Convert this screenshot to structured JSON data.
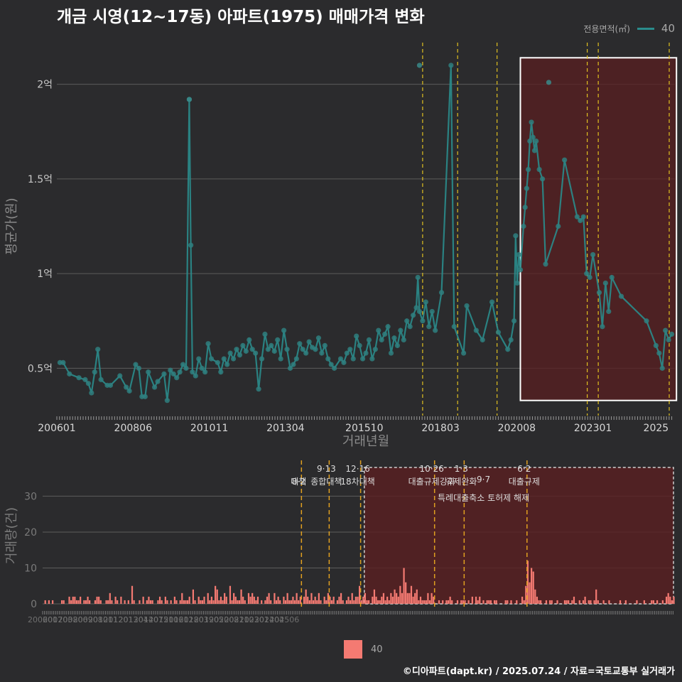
{
  "title": "개금 시영(12~17동) 아파트(1975) 매매가격 변화",
  "legend": {
    "title": "전용면적(㎡)",
    "item": "40"
  },
  "volume_legend": {
    "item": "40"
  },
  "footer": "©디아파트(dapt.kr) / 2025.07.24 / 자료=국토교통부 실거래가",
  "colors": {
    "background": "#2b2b2d",
    "line": "#2a8c8c",
    "bar": "#f47a72",
    "highlight": "#5a1f20",
    "policy_line": "#e0c020"
  },
  "chart_data": [
    {
      "type": "line",
      "xlabel": "거래년월",
      "ylabel": "평균가(원)",
      "x_ticks": [
        "200601",
        "200806",
        "201011",
        "201304",
        "201510",
        "201803",
        "202008",
        "202301",
        "2025"
      ],
      "y_ticks": [
        "0.5억",
        "1억",
        "1.5억",
        "2억"
      ],
      "y_tick_values": [
        0.5,
        1.0,
        1.5,
        2.0
      ],
      "ylim": [
        0.25,
        2.25
      ],
      "xlim": [
        2006.0,
        2025.6
      ],
      "series": [
        {
          "name": "40",
          "points": [
            [
              2006.1,
              0.53
            ],
            [
              2006.2,
              0.53
            ],
            [
              2006.4,
              0.47
            ],
            [
              2006.7,
              0.45
            ],
            [
              2006.9,
              0.44
            ],
            [
              2007.0,
              0.42
            ],
            [
              2007.1,
              0.37
            ],
            [
              2007.2,
              0.48
            ],
            [
              2007.3,
              0.6
            ],
            [
              2007.4,
              0.44
            ],
            [
              2007.6,
              0.41
            ],
            [
              2007.7,
              0.41
            ],
            [
              2008.0,
              0.46
            ],
            [
              2008.2,
              0.4
            ],
            [
              2008.3,
              0.38
            ],
            [
              2008.5,
              0.52
            ],
            [
              2008.6,
              0.5
            ],
            [
              2008.7,
              0.35
            ],
            [
              2008.8,
              0.35
            ],
            [
              2008.9,
              0.48
            ],
            [
              2009.1,
              0.4
            ],
            [
              2009.2,
              0.43
            ],
            [
              2009.4,
              0.47
            ],
            [
              2009.5,
              0.33
            ],
            [
              2009.6,
              0.49
            ],
            [
              2009.7,
              0.47
            ],
            [
              2009.8,
              0.45
            ],
            [
              2009.9,
              0.48
            ],
            [
              2010.0,
              0.52
            ],
            [
              2010.1,
              0.5
            ],
            [
              2010.2,
              1.92
            ],
            [
              2010.25,
              1.15
            ],
            [
              2010.3,
              0.48
            ],
            [
              2010.4,
              0.46
            ],
            [
              2010.5,
              0.55
            ],
            [
              2010.6,
              0.5
            ],
            [
              2010.7,
              0.48
            ],
            [
              2010.8,
              0.63
            ],
            [
              2010.9,
              0.55
            ],
            [
              2011.1,
              0.53
            ],
            [
              2011.2,
              0.48
            ],
            [
              2011.3,
              0.55
            ],
            [
              2011.4,
              0.52
            ],
            [
              2011.5,
              0.58
            ],
            [
              2011.6,
              0.55
            ],
            [
              2011.7,
              0.6
            ],
            [
              2011.8,
              0.57
            ],
            [
              2011.9,
              0.62
            ],
            [
              2012.0,
              0.59
            ],
            [
              2012.1,
              0.65
            ],
            [
              2012.2,
              0.6
            ],
            [
              2012.3,
              0.58
            ],
            [
              2012.4,
              0.39
            ],
            [
              2012.5,
              0.55
            ],
            [
              2012.6,
              0.68
            ],
            [
              2012.7,
              0.6
            ],
            [
              2012.8,
              0.62
            ],
            [
              2012.9,
              0.59
            ],
            [
              2013.0,
              0.65
            ],
            [
              2013.1,
              0.55
            ],
            [
              2013.2,
              0.7
            ],
            [
              2013.3,
              0.6
            ],
            [
              2013.4,
              0.5
            ],
            [
              2013.5,
              0.52
            ],
            [
              2013.6,
              0.55
            ],
            [
              2013.7,
              0.63
            ],
            [
              2013.8,
              0.6
            ],
            [
              2013.9,
              0.58
            ],
            [
              2014.0,
              0.64
            ],
            [
              2014.1,
              0.61
            ],
            [
              2014.2,
              0.6
            ],
            [
              2014.3,
              0.66
            ],
            [
              2014.4,
              0.58
            ],
            [
              2014.5,
              0.62
            ],
            [
              2014.6,
              0.55
            ],
            [
              2014.7,
              0.52
            ],
            [
              2014.8,
              0.5
            ],
            [
              2015.0,
              0.55
            ],
            [
              2015.1,
              0.53
            ],
            [
              2015.2,
              0.58
            ],
            [
              2015.3,
              0.6
            ],
            [
              2015.4,
              0.55
            ],
            [
              2015.5,
              0.67
            ],
            [
              2015.6,
              0.62
            ],
            [
              2015.7,
              0.55
            ],
            [
              2015.8,
              0.58
            ],
            [
              2015.9,
              0.65
            ],
            [
              2016.0,
              0.55
            ],
            [
              2016.1,
              0.6
            ],
            [
              2016.2,
              0.7
            ],
            [
              2016.3,
              0.65
            ],
            [
              2016.4,
              0.68
            ],
            [
              2016.5,
              0.72
            ],
            [
              2016.6,
              0.58
            ],
            [
              2016.7,
              0.66
            ],
            [
              2016.8,
              0.62
            ],
            [
              2016.9,
              0.7
            ],
            [
              2017.0,
              0.65
            ],
            [
              2017.1,
              0.75
            ],
            [
              2017.2,
              0.72
            ],
            [
              2017.3,
              0.78
            ],
            [
              2017.4,
              0.82
            ],
            [
              2017.45,
              0.98
            ],
            [
              2017.5,
              0.8
            ],
            [
              2017.6,
              0.75
            ],
            [
              2017.7,
              0.85
            ],
            [
              2017.8,
              0.72
            ],
            [
              2017.9,
              0.8
            ],
            [
              2018.0,
              0.7
            ],
            [
              2018.2,
              0.9
            ],
            [
              2018.5,
              2.1
            ],
            [
              2018.6,
              0.72
            ],
            [
              2018.9,
              0.58
            ],
            [
              2019.0,
              0.83
            ],
            [
              2019.3,
              0.7
            ],
            [
              2019.5,
              0.65
            ],
            [
              2019.8,
              0.85
            ],
            [
              2020.0,
              0.69
            ],
            [
              2020.3,
              0.6
            ],
            [
              2020.4,
              0.65
            ],
            [
              2020.5,
              0.75
            ],
            [
              2020.55,
              1.2
            ],
            [
              2020.6,
              0.95
            ],
            [
              2020.65,
              1.1
            ],
            [
              2020.7,
              1.02
            ],
            [
              2020.8,
              1.25
            ],
            [
              2020.85,
              1.35
            ],
            [
              2020.9,
              1.45
            ],
            [
              2020.95,
              1.55
            ],
            [
              2021.0,
              1.7
            ],
            [
              2021.05,
              1.8
            ],
            [
              2021.1,
              1.72
            ],
            [
              2021.15,
              1.65
            ],
            [
              2021.2,
              1.7
            ],
            [
              2021.3,
              1.55
            ],
            [
              2021.4,
              1.5
            ],
            [
              2021.5,
              1.05
            ],
            [
              2021.9,
              1.25
            ],
            [
              2022.1,
              1.6
            ],
            [
              2022.5,
              1.3
            ],
            [
              2022.6,
              1.28
            ],
            [
              2022.7,
              1.3
            ],
            [
              2022.8,
              1.0
            ],
            [
              2022.9,
              0.98
            ],
            [
              2023.0,
              1.1
            ],
            [
              2023.2,
              0.9
            ],
            [
              2023.3,
              0.72
            ],
            [
              2023.4,
              0.95
            ],
            [
              2023.5,
              0.8
            ],
            [
              2023.6,
              0.98
            ],
            [
              2023.9,
              0.88
            ],
            [
              2024.7,
              0.75
            ],
            [
              2025.0,
              0.62
            ],
            [
              2025.1,
              0.58
            ],
            [
              2025.2,
              0.5
            ],
            [
              2025.3,
              0.7
            ],
            [
              2025.4,
              0.65
            ],
            [
              2025.5,
              0.68
            ]
          ]
        }
      ],
      "outliers": [
        [
          2017.5,
          2.1
        ],
        [
          2010.2,
          1.92
        ],
        [
          2021.6,
          2.01
        ]
      ],
      "policy_lines": [
        2017.6,
        2018.71,
        2019.96,
        2022.82,
        2023.17,
        2025.42
      ],
      "highlight": {
        "x0": 2020.7,
        "x1": 2025.65,
        "y0": 0.33,
        "y1": 2.14
      }
    },
    {
      "type": "bar",
      "xlabel": "",
      "ylabel": "거래량(건)",
      "x_ticks": [
        "200601",
        "200703",
        "200806",
        "200908",
        "201011",
        "201201",
        "201304",
        "201407",
        "201510",
        "201612",
        "201803",
        "201905",
        "202008",
        "202110",
        "202301",
        "202404",
        "202506"
      ],
      "y_ticks": [
        "0",
        "10",
        "20",
        "30"
      ],
      "y_tick_values": [
        0,
        10,
        20,
        30
      ],
      "ylim": [
        0,
        38
      ],
      "annotations": [
        {
          "date": "8·2",
          "label": "대책"
        },
        {
          "date": "9·13",
          "label": "종합대책"
        },
        {
          "date": "12·16",
          "label": "18차대책"
        },
        {
          "date": "10·26",
          "label": "대출규제강화"
        },
        {
          "date": "1·3",
          "label": "규제완화"
        },
        {
          "date": "9·7",
          "label": "특례대출축소 토허제 해제"
        },
        {
          "date": "6·2",
          "label": "대출규제"
        }
      ],
      "values": [
        0,
        1,
        0,
        1,
        0,
        1,
        0,
        0,
        0,
        0,
        1,
        1,
        0,
        0,
        2,
        1,
        2,
        2,
        1,
        1,
        2,
        0,
        1,
        1,
        2,
        1,
        0,
        0,
        1,
        2,
        2,
        1,
        0,
        0,
        1,
        1,
        3,
        1,
        0,
        2,
        1,
        0,
        2,
        0,
        1,
        0,
        1,
        0,
        5,
        1,
        0,
        0,
        1,
        0,
        2,
        0,
        1,
        2,
        1,
        1,
        0,
        0,
        1,
        2,
        1,
        0,
        2,
        1,
        0,
        1,
        0,
        2,
        1,
        0,
        1,
        3,
        1,
        1,
        1,
        2,
        0,
        4,
        1,
        0,
        2,
        1,
        1,
        2,
        0,
        3,
        1,
        2,
        1,
        5,
        4,
        1,
        2,
        1,
        3,
        2,
        0,
        5,
        1,
        3,
        2,
        1,
        1,
        4,
        2,
        1,
        0,
        3,
        2,
        3,
        2,
        1,
        2,
        0,
        1,
        0,
        1,
        2,
        3,
        1,
        0,
        3,
        1,
        2,
        1,
        0,
        2,
        1,
        3,
        1,
        1,
        2,
        1,
        3,
        1,
        2,
        0,
        2,
        4,
        2,
        1,
        3,
        1,
        2,
        1,
        3,
        1,
        0,
        2,
        1,
        3,
        2,
        1,
        2,
        0,
        1,
        2,
        3,
        1,
        0,
        1,
        2,
        1,
        3,
        1,
        2,
        2,
        5,
        1,
        2,
        3,
        1,
        1,
        0,
        2,
        4,
        2,
        1,
        1,
        2,
        3,
        1,
        2,
        1,
        3,
        2,
        4,
        3,
        2,
        5,
        3,
        10,
        6,
        3,
        3,
        5,
        2,
        3,
        4,
        1,
        2,
        1,
        1,
        1,
        3,
        1,
        3,
        2,
        0,
        0,
        1,
        0,
        1,
        0,
        1,
        1,
        2,
        1,
        0,
        0,
        1,
        0,
        1,
        1,
        1,
        0,
        1,
        0,
        2,
        0,
        2,
        1,
        2,
        0,
        1,
        0,
        1,
        1,
        1,
        0,
        1,
        1,
        0,
        0,
        0,
        0,
        1,
        1,
        0,
        1,
        0,
        0,
        1,
        0,
        0,
        2,
        1,
        5,
        12,
        6,
        10,
        9,
        4,
        2,
        1,
        1,
        0,
        0,
        1,
        0,
        1,
        1,
        0,
        0,
        1,
        0,
        0,
        0,
        1,
        1,
        1,
        0,
        1,
        2,
        0,
        0,
        1,
        0,
        1,
        2,
        0,
        1,
        1,
        0,
        1,
        4,
        1,
        0,
        0,
        1,
        0,
        0,
        1,
        0,
        0,
        0,
        0,
        0,
        1,
        0,
        0,
        1,
        0,
        0,
        0,
        0,
        0,
        1,
        0,
        0,
        0,
        1,
        0,
        0,
        0,
        1,
        1,
        0,
        1,
        0,
        0,
        1,
        0,
        2,
        3,
        2,
        1,
        2
      ]
    }
  ]
}
